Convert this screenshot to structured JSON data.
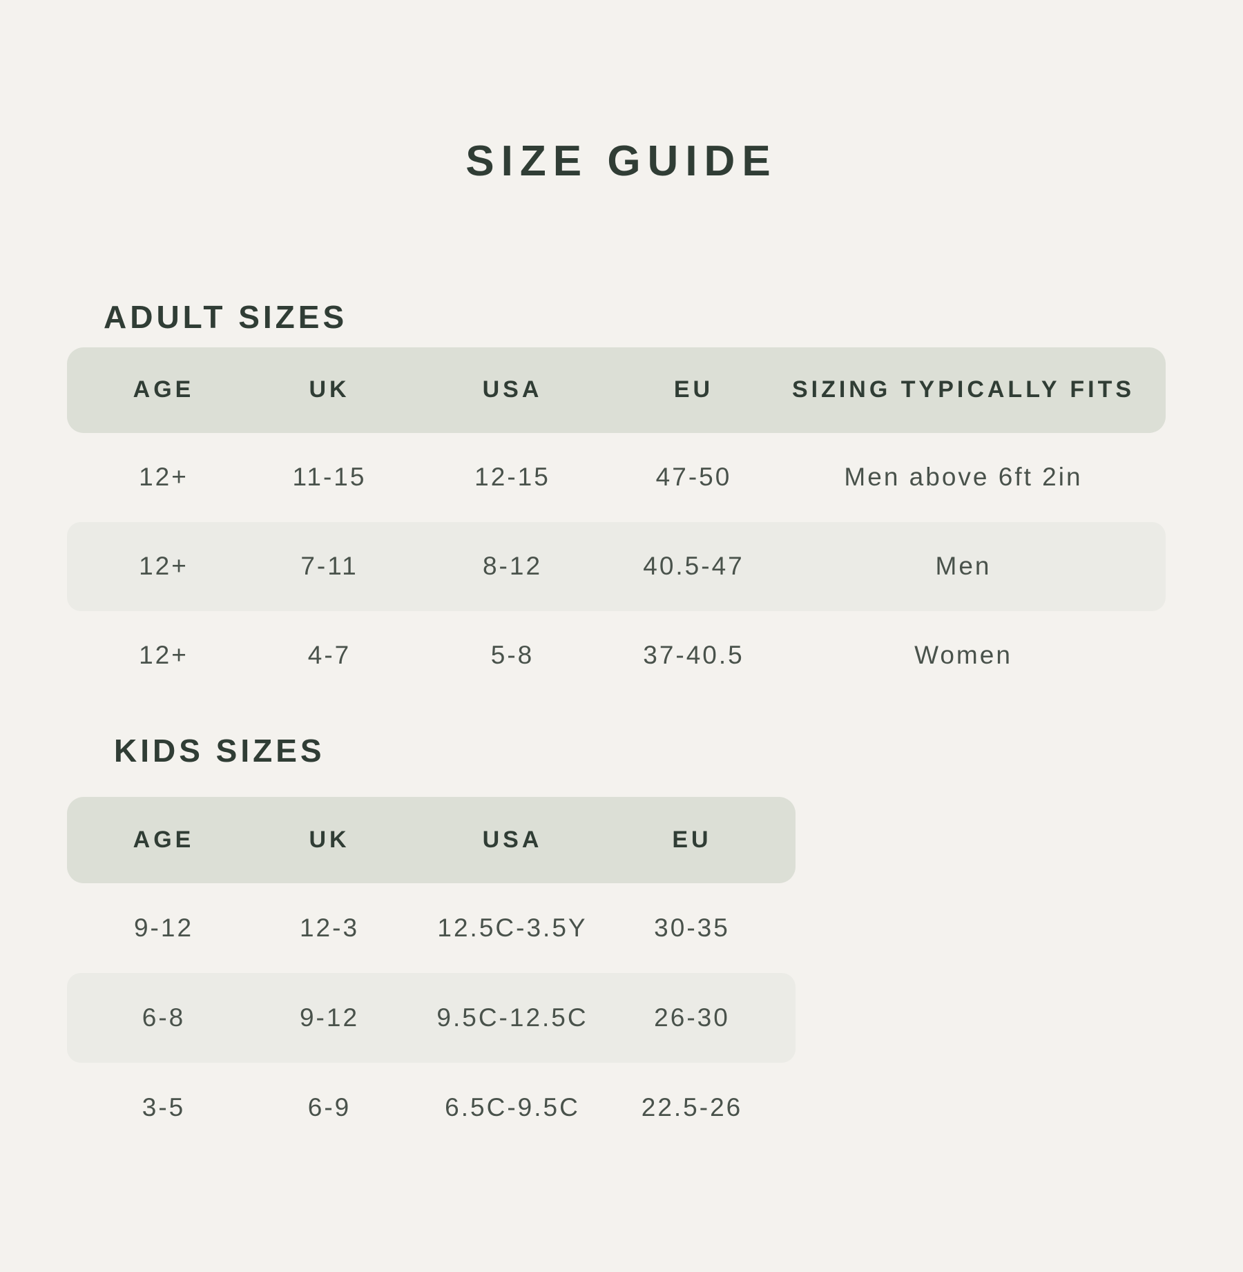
{
  "page": {
    "title": "SIZE GUIDE"
  },
  "colors": {
    "background": "#f4f2ee",
    "header_band": "#dcdfd6",
    "row_stripe": "#ebebe6",
    "heading_text": "#303d35",
    "data_text": "#49524b"
  },
  "adult_table": {
    "heading": "ADULT SIZES",
    "columns": [
      "AGE",
      "UK",
      "USA",
      "EU",
      "SIZING TYPICALLY FITS"
    ],
    "rows": [
      [
        "12+",
        "11-15",
        "12-15",
        "47-50",
        "Men above 6ft 2in"
      ],
      [
        "12+",
        "7-11",
        "8-12",
        "40.5-47",
        "Men"
      ],
      [
        "12+",
        "4-7",
        "5-8",
        "37-40.5",
        "Women"
      ]
    ]
  },
  "kids_table": {
    "heading": "KIDS SIZES",
    "columns": [
      "AGE",
      "UK",
      "USA",
      "EU"
    ],
    "rows": [
      [
        "9-12",
        "12-3",
        "12.5C-3.5Y",
        "30-35"
      ],
      [
        "6-8",
        "9-12",
        "9.5C-12.5C",
        "26-30"
      ],
      [
        "3-5",
        "6-9",
        "6.5C-9.5C",
        "22.5-26"
      ]
    ]
  }
}
